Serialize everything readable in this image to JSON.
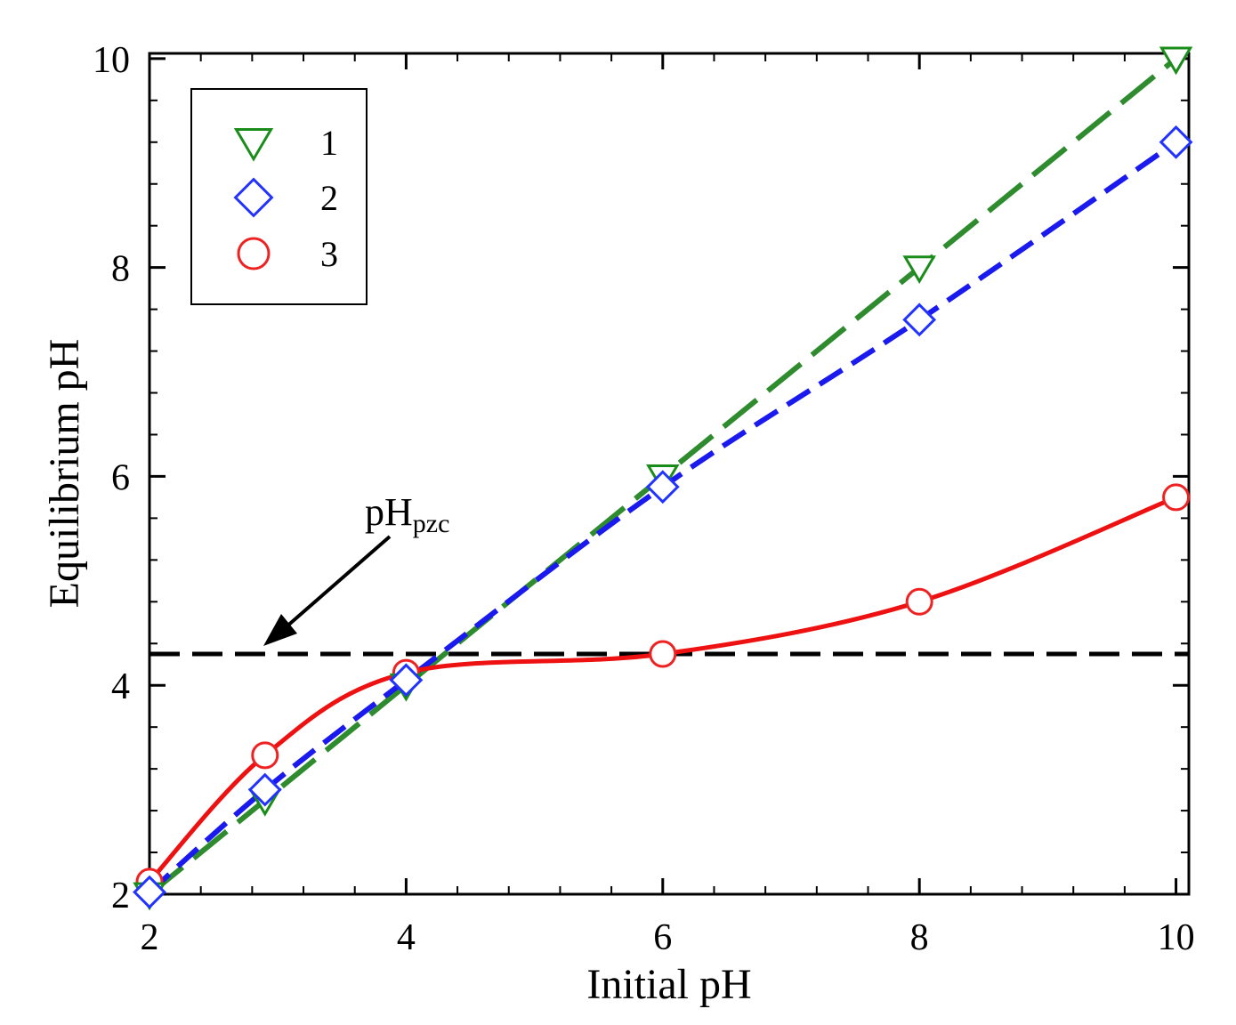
{
  "chart_data": {
    "type": "line",
    "title": "",
    "xlabel": "Initial pH",
    "ylabel": "Equilibrium pH",
    "xlim": [
      2,
      10.1
    ],
    "ylim": [
      2,
      10.05
    ],
    "xticks": [
      2,
      4,
      6,
      8,
      10
    ],
    "yticks": [
      2,
      4,
      6,
      8,
      10
    ],
    "xtick_labels": [
      "2",
      "4",
      "6",
      "8",
      "10"
    ],
    "ytick_labels": [
      "2",
      "4",
      "6",
      "8",
      "10"
    ],
    "minor_x_step": 0.4,
    "minor_y_step": 0.4,
    "grid": false,
    "legend_position": "top-left",
    "series": [
      {
        "name": "1",
        "marker": "triangle-down",
        "color": "#2e8b2e",
        "marker_color": "#1a8c1a",
        "line_style": "long-dash",
        "x": [
          2.0,
          2.9,
          4.0,
          6.0,
          8.0,
          10.0
        ],
        "y": [
          2.0,
          2.9,
          4.0,
          6.0,
          8.0,
          10.0
        ]
      },
      {
        "name": "2",
        "marker": "diamond",
        "color": "#1a1aee",
        "marker_color": "#2233ff",
        "line_style": "dash",
        "x": [
          2.0,
          2.9,
          4.0,
          6.0,
          8.0,
          10.0
        ],
        "y": [
          2.02,
          3.0,
          4.05,
          5.9,
          7.5,
          9.2
        ]
      },
      {
        "name": "3",
        "marker": "circle",
        "color": "#ee1111",
        "marker_color": "#ee2222",
        "line_style": "solid",
        "x": [
          2.0,
          2.9,
          4.0,
          6.0,
          8.0,
          10.0
        ],
        "y": [
          2.12,
          3.33,
          4.12,
          4.3,
          4.8,
          5.8
        ]
      }
    ],
    "reference_line": {
      "y": 4.3,
      "color": "#000000",
      "style": "dash",
      "label": "pH",
      "label_subscript": "pzc"
    }
  }
}
